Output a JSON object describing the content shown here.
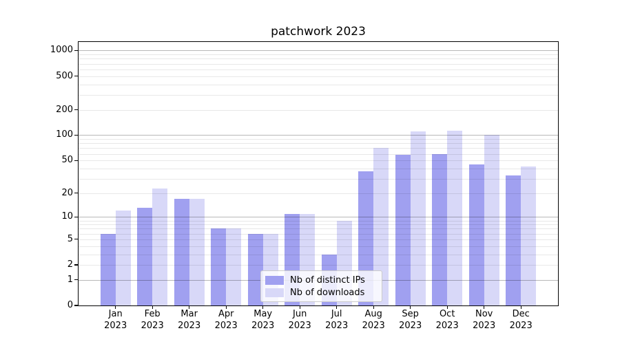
{
  "chart_data": {
    "type": "bar",
    "title": "patchwork 2023",
    "categories": [
      "Jan",
      "Feb",
      "Mar",
      "Apr",
      "May",
      "Jun",
      "Jul",
      "Aug",
      "Sep",
      "Oct",
      "Nov",
      "Dec"
    ],
    "category_sub_label": "2023",
    "series": [
      {
        "name": "Nb of distinct IPs",
        "color": "#a0a0f0",
        "values": [
          6,
          13,
          17,
          7,
          6,
          11,
          3,
          37,
          58,
          60,
          45,
          33
        ]
      },
      {
        "name": "Nb of downloads",
        "color": "#d8d8f8",
        "values": [
          12,
          23,
          17,
          7,
          6,
          11,
          9,
          70,
          110,
          114,
          100,
          42
        ]
      }
    ],
    "y_axis": {
      "ticks": [
        0,
        1,
        2,
        5,
        10,
        20,
        50,
        100,
        200,
        500,
        1000
      ],
      "major_grid_values": [
        1,
        10,
        100,
        1000
      ],
      "scale": "log(1+x)",
      "ylim": [
        0,
        1300
      ],
      "grid": "on"
    },
    "legend_position": "lower center"
  }
}
